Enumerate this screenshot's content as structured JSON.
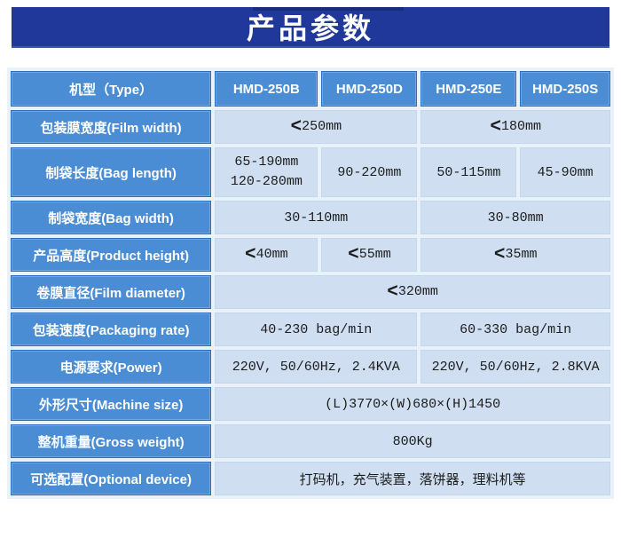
{
  "banner": {
    "title": "产品参数"
  },
  "colors": {
    "banner_bg": "#21389b",
    "header_cell_bg": "#4b8dd4",
    "value_cell_bg": "#cfdff1",
    "cell_border": "#2c6dbd"
  },
  "table": {
    "header": {
      "type_label": "机型（Type）",
      "models": [
        "HMD-250B",
        "HMD-250D",
        "HMD-250E",
        "HMD-250S"
      ]
    },
    "rows": [
      {
        "label": "包装膜宽度(Film width)",
        "cells": [
          {
            "lt": "<",
            "text": "250mm"
          },
          {
            "lt": "<",
            "text": "180mm"
          }
        ]
      },
      {
        "label": "制袋长度(Bag length)",
        "cells": [
          {
            "line1": "65-190mm",
            "line2": "120-280mm"
          },
          {
            "text": "90-220mm"
          },
          {
            "text": "50-115mm"
          },
          {
            "text": "45-90mm"
          }
        ]
      },
      {
        "label": "制袋宽度(Bag width)",
        "cells": [
          {
            "text": "30-110mm"
          },
          {
            "text": "30-80mm"
          }
        ]
      },
      {
        "label": "产品高度(Product height)",
        "cells": [
          {
            "lt": "<",
            "text": "40mm"
          },
          {
            "lt": "<",
            "text": "55mm"
          },
          {
            "lt": "<",
            "text": "35mm"
          }
        ]
      },
      {
        "label": "卷膜直径(Film diameter)",
        "cells": [
          {
            "lt": "<",
            "text": "320mm"
          }
        ]
      },
      {
        "label": "包装速度(Packaging rate)",
        "cells": [
          {
            "text": "40-230 bag/min"
          },
          {
            "text": "60-330 bag/min"
          }
        ]
      },
      {
        "label": "电源要求(Power)",
        "cells": [
          {
            "text": "220V, 50/60Hz, 2.4KVA"
          },
          {
            "text": "220V, 50/60Hz, 2.8KVA"
          }
        ]
      },
      {
        "label": "外形尺寸(Machine size)",
        "cells": [
          {
            "text": "(L)3770×(W)680×(H)1450"
          }
        ]
      },
      {
        "label": "整机重量(Gross weight)",
        "cells": [
          {
            "text": "800Kg"
          }
        ]
      },
      {
        "label": "可选配置(Optional device)",
        "cells": [
          {
            "text": "打码机，充气装置，落饼器，理料机等"
          }
        ]
      }
    ]
  }
}
